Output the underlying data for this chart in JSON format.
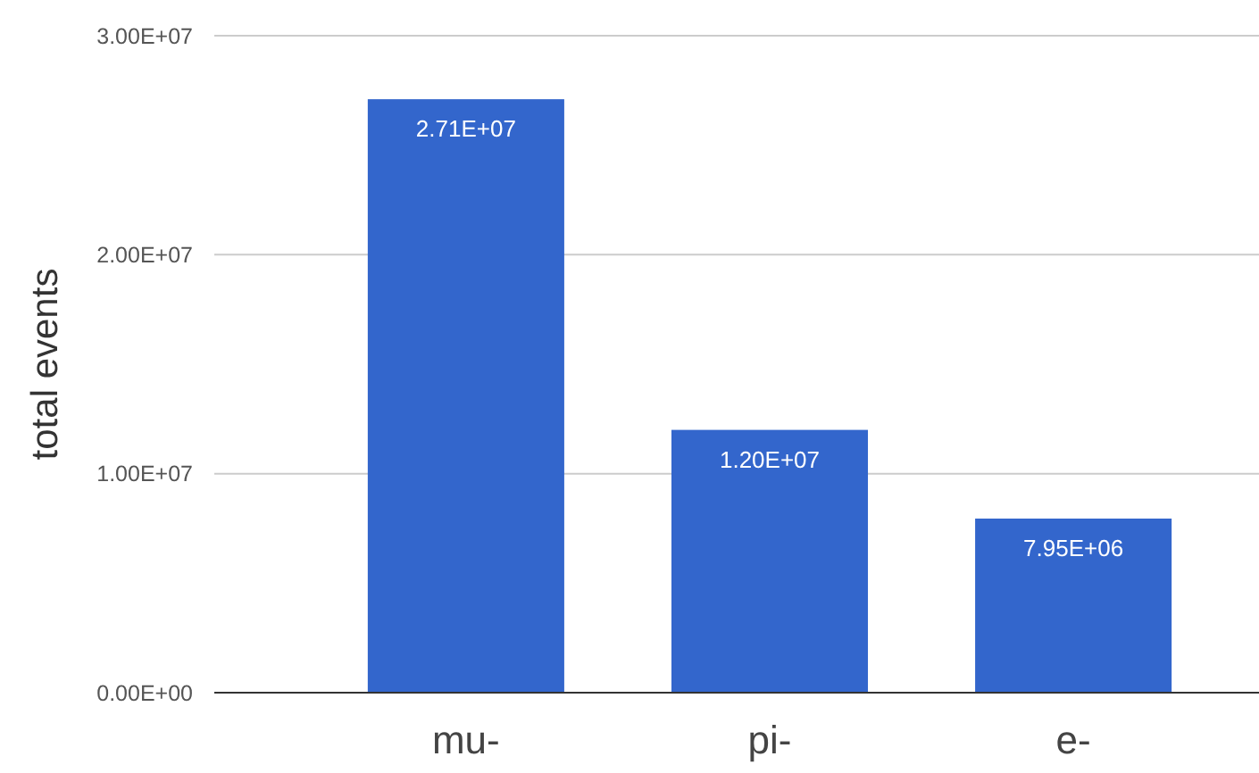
{
  "chart_data": {
    "type": "bar",
    "ylabel": "total events",
    "categories": [
      "mu-",
      "pi-",
      "e-"
    ],
    "values": [
      27100000,
      12000000,
      7950000
    ],
    "value_labels": [
      "2.71E+07",
      "1.20E+07",
      "7.95E+06"
    ],
    "color": "#3366cc",
    "ylim": [
      0,
      30000000
    ],
    "yticks": [
      {
        "value": 0,
        "label": "0.00E+00"
      },
      {
        "value": 10000000,
        "label": "1.00E+07"
      },
      {
        "value": 20000000,
        "label": "2.00E+07"
      },
      {
        "value": 30000000,
        "label": "3.00E+07"
      }
    ],
    "grid": true
  }
}
